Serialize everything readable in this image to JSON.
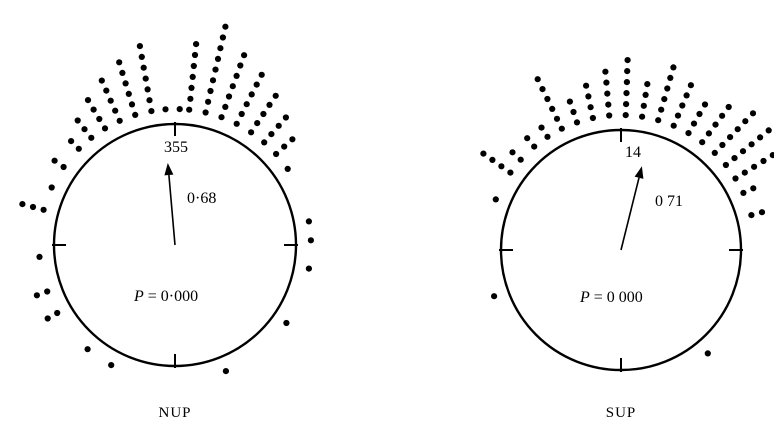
{
  "chart_data": [
    {
      "type": "scatter",
      "subtype": "circular-dot-plot",
      "caption": "NUP",
      "axis": "0-360 degrees, 0 at top, clockwise",
      "mean_direction_label": "355",
      "mean_direction_deg": 355,
      "vector_length_label": "0·68",
      "vector_length": 0.68,
      "p_value_label": "P = 0·000",
      "p_value_prefix": "P",
      "p_value_text": " = 0·000",
      "bins": [
        {
          "angle_deg": -75,
          "count": 3
        },
        {
          "angle_deg": -65,
          "count": 1
        },
        {
          "angle_deg": -55,
          "count": 2
        },
        {
          "angle_deg": -45,
          "count": 2
        },
        {
          "angle_deg": -38,
          "count": 3
        },
        {
          "angle_deg": -31,
          "count": 4
        },
        {
          "angle_deg": -24,
          "count": 5
        },
        {
          "angle_deg": -17,
          "count": 6
        },
        {
          "angle_deg": -10,
          "count": 7
        },
        {
          "angle_deg": -4,
          "count": 1
        },
        {
          "angle_deg": 2,
          "count": 1
        },
        {
          "angle_deg": 6,
          "count": 7
        },
        {
          "angle_deg": 13,
          "count": 9
        },
        {
          "angle_deg": 20,
          "count": 7
        },
        {
          "angle_deg": 27,
          "count": 6
        },
        {
          "angle_deg": 34,
          "count": 5
        },
        {
          "angle_deg": 41,
          "count": 4
        },
        {
          "angle_deg": 48,
          "count": 3
        },
        {
          "angle_deg": 56,
          "count": 1
        },
        {
          "angle_deg": 80,
          "count": 1
        },
        {
          "angle_deg": 88,
          "count": 1
        },
        {
          "angle_deg": 100,
          "count": 1
        },
        {
          "angle_deg": 125,
          "count": 1
        },
        {
          "angle_deg": 158,
          "count": 1
        },
        {
          "angle_deg": 208,
          "count": 1
        },
        {
          "angle_deg": 220,
          "count": 1
        },
        {
          "angle_deg": 240,
          "count": 2
        },
        {
          "angle_deg": 250,
          "count": 2
        },
        {
          "angle_deg": 265,
          "count": 1
        }
      ]
    },
    {
      "type": "scatter",
      "subtype": "circular-dot-plot",
      "caption": "SUP",
      "axis": "0-360 degrees, 0 at top, clockwise",
      "mean_direction_label": "14",
      "mean_direction_deg": 14,
      "vector_length_label": "0 71",
      "vector_length": 0.71,
      "p_value_label": "P = 0 000",
      "p_value_prefix": "P",
      "p_value_text": " = 0 000",
      "bins": [
        {
          "angle_deg": -68,
          "count": 1
        },
        {
          "angle_deg": -55,
          "count": 4
        },
        {
          "angle_deg": -48,
          "count": 2
        },
        {
          "angle_deg": -40,
          "count": 2
        },
        {
          "angle_deg": -33,
          "count": 2
        },
        {
          "angle_deg": -26,
          "count": 6
        },
        {
          "angle_deg": -19,
          "count": 3
        },
        {
          "angle_deg": -12,
          "count": 4
        },
        {
          "angle_deg": -5,
          "count": 5
        },
        {
          "angle_deg": 2,
          "count": 6
        },
        {
          "angle_deg": 9,
          "count": 4
        },
        {
          "angle_deg": 16,
          "count": 6
        },
        {
          "angle_deg": 23,
          "count": 5
        },
        {
          "angle_deg": 30,
          "count": 4
        },
        {
          "angle_deg": 37,
          "count": 5
        },
        {
          "angle_deg": 44,
          "count": 6
        },
        {
          "angle_deg": 51,
          "count": 6
        },
        {
          "angle_deg": 58,
          "count": 5
        },
        {
          "angle_deg": 65,
          "count": 2
        },
        {
          "angle_deg": 75,
          "count": 2
        },
        {
          "angle_deg": 140,
          "count": 1
        },
        {
          "angle_deg": 250,
          "count": 1
        }
      ]
    }
  ]
}
